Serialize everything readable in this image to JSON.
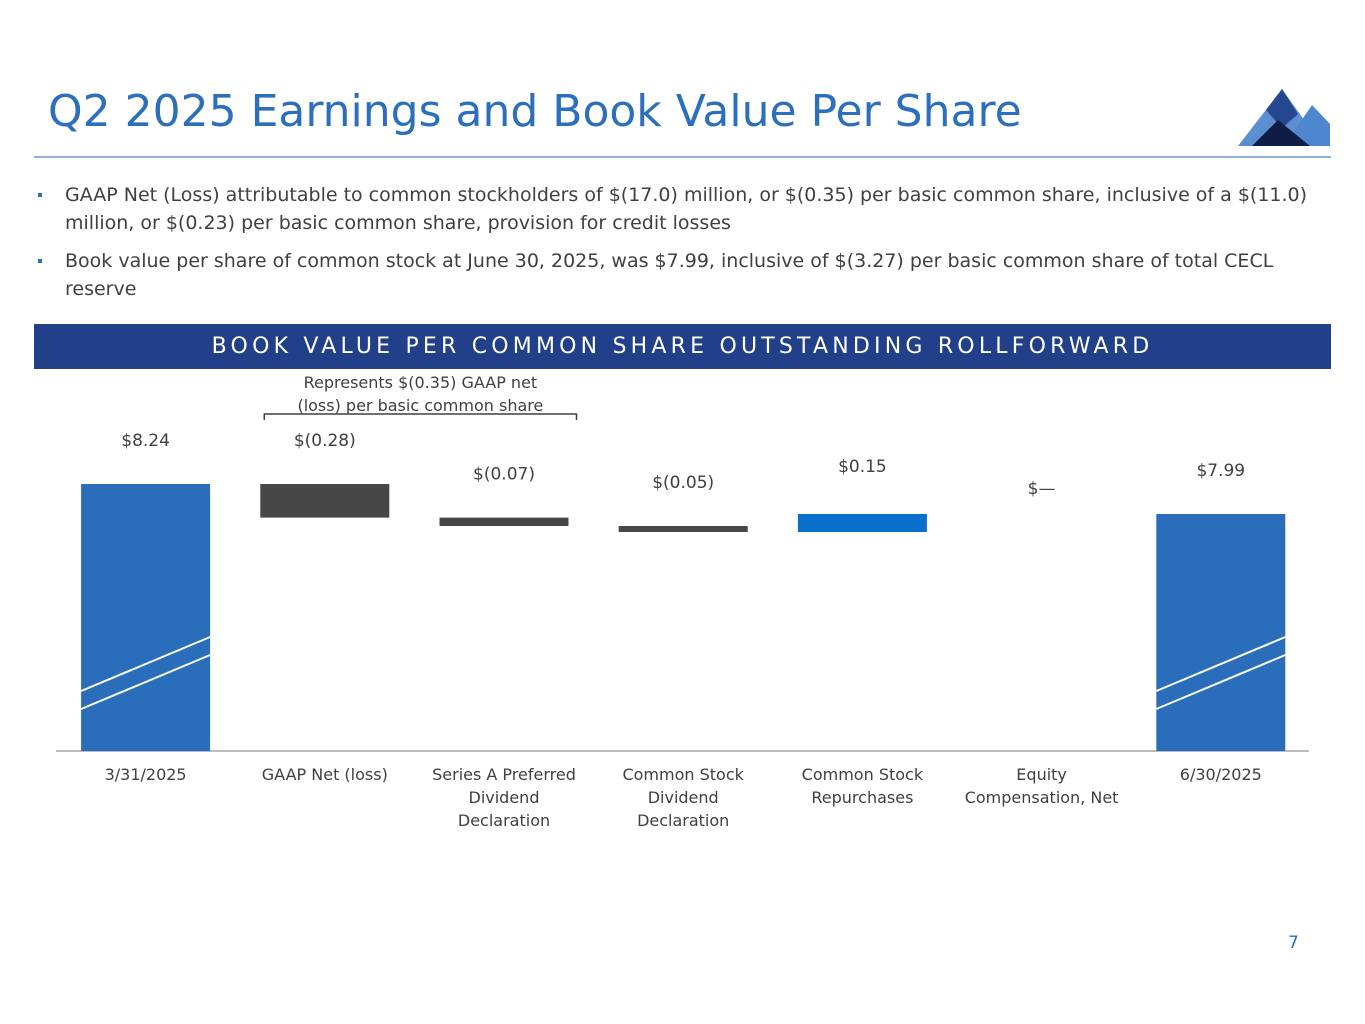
{
  "slide": {
    "title": "Q2 2025 Earnings and Book Value Per Share",
    "page_number": "7",
    "bullets": [
      "GAAP Net (Loss) attributable to common stockholders of $(17.0) million, or $(0.35) per basic common share, inclusive of a $(11.0) million, or $(0.23) per basic common share, provision for credit losses",
      "Book value per share of common stock at June 30, 2025, was $7.99, inclusive of $(3.27) per basic common share of total CECL reserve"
    ],
    "banner": "BOOK VALUE PER COMMON SHARE OUTSTANDING ROLLFORWARD"
  },
  "chart_data": {
    "type": "bar",
    "subtype": "waterfall",
    "title": "",
    "xlabel": "",
    "ylabel": "",
    "axis_break": true,
    "categories": [
      [
        "3/31/2025"
      ],
      [
        "GAAP Net (loss)"
      ],
      [
        "Series A Preferred",
        "Dividend",
        "Declaration"
      ],
      [
        "Common Stock",
        "Dividend",
        "Declaration"
      ],
      [
        "Common Stock",
        "Repurchases"
      ],
      [
        "Equity",
        "Compensation, Net"
      ],
      [
        "6/30/2025"
      ]
    ],
    "values": [
      8.24,
      -0.28,
      -0.07,
      -0.05,
      0.15,
      0.0,
      7.99
    ],
    "kinds": [
      "total",
      "delta",
      "delta",
      "delta",
      "delta",
      "delta",
      "total"
    ],
    "data_labels": [
      "$8.24",
      "$(0.28)",
      "$(0.07)",
      "$(0.05)",
      "$0.15",
      "$—",
      "$7.99"
    ],
    "annotation": {
      "text": [
        "Represents $(0.35) GAAP net",
        "(loss) per basic common share"
      ],
      "spans": [
        1,
        2
      ]
    },
    "colors": {
      "total": "#2a6ebb",
      "decrease": "#474747",
      "increase": "#0b6fce"
    }
  }
}
